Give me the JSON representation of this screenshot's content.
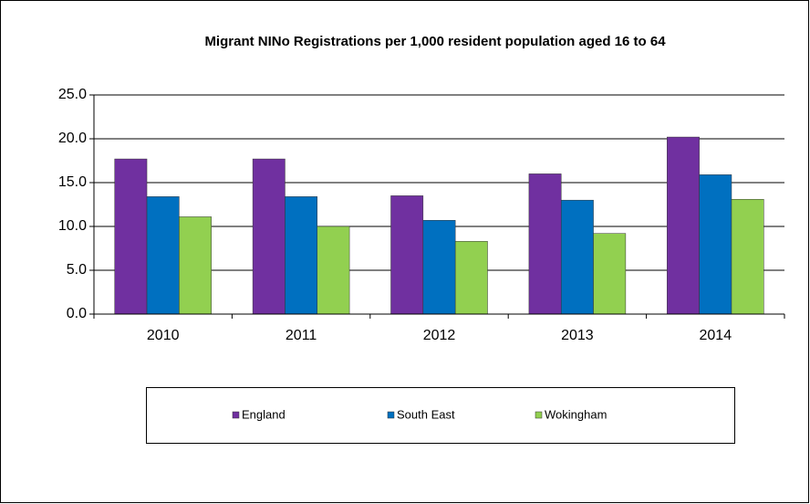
{
  "chart_data": {
    "type": "bar",
    "title": "Migrant NINo Registrations per 1,000 resident population aged 16 to 64",
    "categories": [
      "2010",
      "2011",
      "2012",
      "2013",
      "2014"
    ],
    "series": [
      {
        "name": "England",
        "color": "#7030a0",
        "values": [
          17.7,
          17.7,
          13.5,
          16.0,
          20.2
        ]
      },
      {
        "name": "South East",
        "color": "#0070c0",
        "values": [
          13.4,
          13.4,
          10.7,
          13.0,
          15.9
        ]
      },
      {
        "name": "Wokingham",
        "color": "#92d050",
        "values": [
          11.1,
          10.0,
          8.3,
          9.2,
          13.1
        ]
      }
    ],
    "ylim": [
      0,
      25
    ],
    "yticks": [
      {
        "value": 0,
        "label": "0.0"
      },
      {
        "value": 5,
        "label": "5.0"
      },
      {
        "value": 10,
        "label": "10.0"
      },
      {
        "value": 15,
        "label": "15.0"
      },
      {
        "value": 20,
        "label": "20.0"
      },
      {
        "value": 25,
        "label": "25.0"
      }
    ],
    "grid": true,
    "legend": "bottom"
  }
}
